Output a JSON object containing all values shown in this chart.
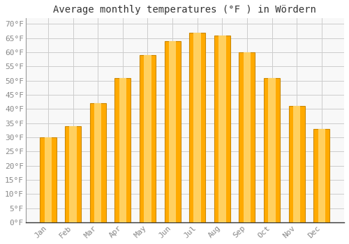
{
  "title": "Average monthly temperatures (°F ) in Wördern",
  "months": [
    "Jan",
    "Feb",
    "Mar",
    "Apr",
    "May",
    "Jun",
    "Jul",
    "Aug",
    "Sep",
    "Oct",
    "Nov",
    "Dec"
  ],
  "values": [
    30,
    34,
    42,
    51,
    59,
    64,
    67,
    66,
    60,
    51,
    41,
    33
  ],
  "bar_color_main": "#FFAA00",
  "bar_color_edge": "#CC8800",
  "bar_color_light": "#FFD060",
  "background_color": "#FFFFFF",
  "plot_bg_color": "#F8F8F8",
  "ylim": [
    0,
    72
  ],
  "yticks": [
    0,
    5,
    10,
    15,
    20,
    25,
    30,
    35,
    40,
    45,
    50,
    55,
    60,
    65,
    70
  ],
  "grid_color": "#CCCCCC",
  "title_fontsize": 10,
  "tick_fontsize": 8,
  "tick_label_color": "#888888",
  "title_color": "#333333",
  "bar_width": 0.65
}
